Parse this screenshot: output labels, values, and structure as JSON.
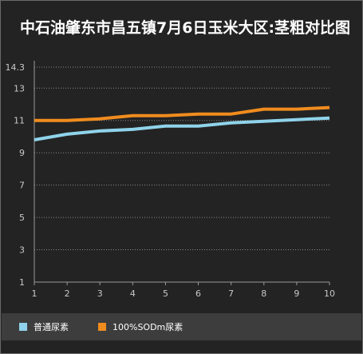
{
  "chart_data": {
    "type": "line",
    "title": "中石油肇东市昌五镇7月6日玉米大区:茎粗对比图",
    "x": [
      1,
      2,
      3,
      4,
      5,
      6,
      7,
      8,
      9,
      10
    ],
    "xlim": [
      1,
      10
    ],
    "ylim": [
      1,
      14.3
    ],
    "yticks": [
      1,
      3,
      5,
      7,
      9,
      11,
      13,
      14.3
    ],
    "grid": true,
    "legend_position": "bottom",
    "series": [
      {
        "name": "普通尿素",
        "color": "#8fd3ea",
        "values": [
          9.8,
          10.15,
          10.35,
          10.45,
          10.65,
          10.65,
          10.85,
          10.95,
          11.05,
          11.15
        ]
      },
      {
        "name": "100%SODm尿素",
        "color": "#f08c1e",
        "values": [
          11.0,
          11.0,
          11.1,
          11.3,
          11.3,
          11.4,
          11.4,
          11.7,
          11.7,
          11.8
        ]
      }
    ]
  },
  "colors": {
    "background": "#232323",
    "legend_background": "#3d3d3d",
    "axis": "#9a9a9a",
    "grid": "#8a8a8a",
    "text": "#c8c8c8"
  }
}
